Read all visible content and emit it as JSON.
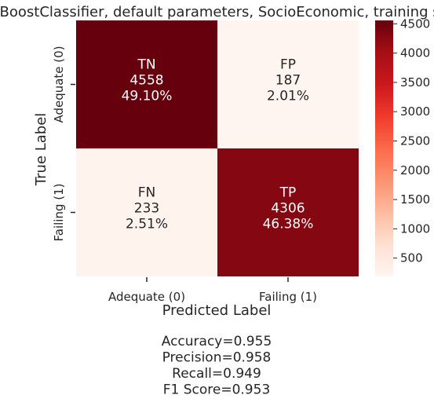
{
  "chart_data": {
    "type": "heatmap",
    "title": "XGBoostClassifier, default parameters, SocioEconomic, training set",
    "xlabel": "Predicted Label",
    "ylabel": "True Label",
    "x_categories": [
      "Adequate (0)",
      "Failing (1)"
    ],
    "y_categories": [
      "Adequate (0)",
      "Failing (1)"
    ],
    "cells": [
      [
        {
          "label": "TN",
          "count": "4558",
          "percent": "49.10%",
          "value": 4558
        },
        {
          "label": "FP",
          "count": "187",
          "percent": "2.01%",
          "value": 187
        }
      ],
      [
        {
          "label": "FN",
          "count": "233",
          "percent": "2.51%",
          "value": 233
        },
        {
          "label": "TP",
          "count": "4306",
          "percent": "46.38%",
          "value": 4306
        }
      ]
    ],
    "colormap": "Reds",
    "colorbar": {
      "min": 187,
      "max": 4558,
      "ticks": [
        "500",
        "1000",
        "1500",
        "2000",
        "2500",
        "3000",
        "3500",
        "4000",
        "4500"
      ]
    },
    "metrics": [
      "Accuracy=0.955",
      "Precision=0.958",
      "Recall=0.949",
      "F1 Score=0.953"
    ]
  }
}
